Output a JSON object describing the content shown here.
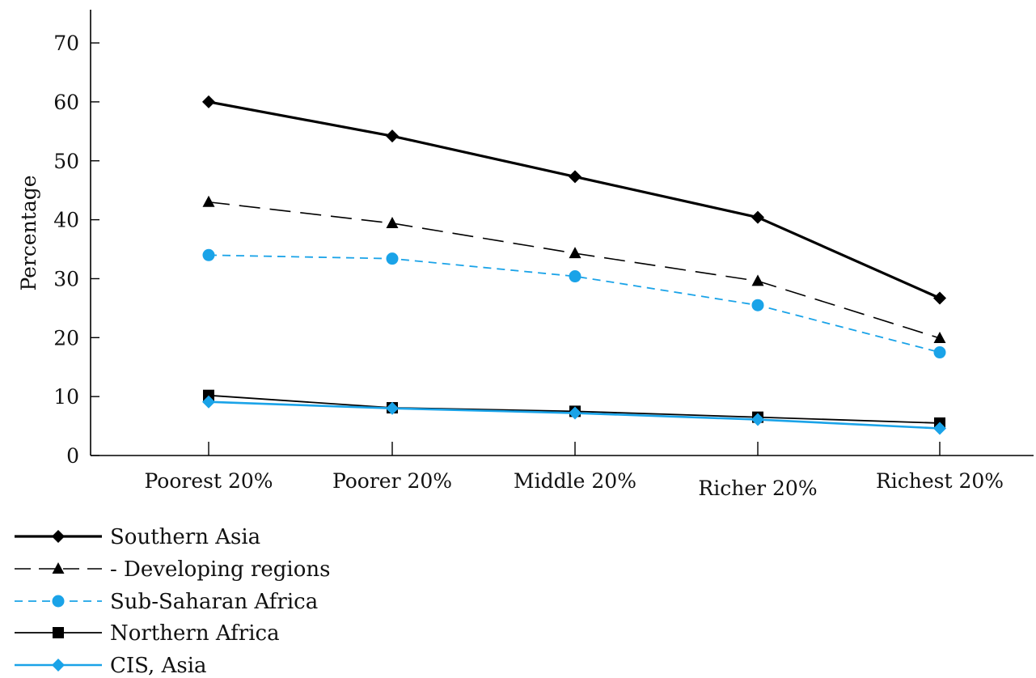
{
  "chart_data": {
    "type": "line",
    "ylabel": "Percentage",
    "xlabel": "",
    "ylim": [
      0,
      70
    ],
    "yticks": [
      0,
      10,
      20,
      30,
      40,
      50,
      60,
      70
    ],
    "categories": [
      "Poorest 20%",
      "Poorer 20%",
      "Middle 20%",
      "Richer 20%",
      "Richest 20%"
    ],
    "grid": false,
    "legend_position": "bottom-left",
    "series": [
      {
        "name": "Southern Asia",
        "values": [
          60,
          54.2,
          47.3,
          40.4,
          26.7
        ],
        "color": "#000000",
        "marker": "diamond",
        "line": "solid-thick"
      },
      {
        "name": "- Developing regions",
        "values": [
          43,
          39.4,
          34.3,
          29.6,
          19.9
        ],
        "color": "#000000",
        "marker": "triangle",
        "line": "long-dash"
      },
      {
        "name": "Sub-Saharan Africa",
        "values": [
          34,
          33.4,
          30.4,
          25.5,
          17.5
        ],
        "color": "#1aa3e8",
        "marker": "circle",
        "line": "short-dash"
      },
      {
        "name": "Northern Africa",
        "values": [
          10.2,
          8.1,
          7.5,
          6.5,
          5.5
        ],
        "color": "#000000",
        "marker": "square",
        "line": "solid-thin"
      },
      {
        "name": "CIS, Asia",
        "values": [
          9.1,
          8.0,
          7.2,
          6.1,
          4.6
        ],
        "color": "#1aa3e8",
        "marker": "diamond",
        "line": "solid"
      }
    ]
  }
}
